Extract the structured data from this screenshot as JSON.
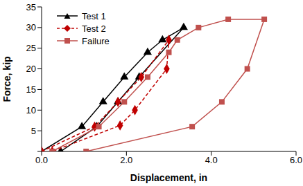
{
  "chart_data": {
    "type": "line",
    "x_label": "Displacement, in",
    "y_label": "Force, kip",
    "xlim": [
      0,
      6
    ],
    "xticks": [
      {
        "value": 0,
        "label": "0.0"
      },
      {
        "value": 2,
        "label": "2.0"
      },
      {
        "value": 4,
        "label": "4.0"
      },
      {
        "value": 6,
        "label": "6.0"
      }
    ],
    "ylim": [
      0,
      35
    ],
    "yticks": [
      0,
      5,
      10,
      15,
      20,
      25,
      30,
      35
    ],
    "grid": false,
    "legend": "upper left",
    "series": [
      {
        "name": "Test 1",
        "color": "#000000",
        "marker": "triangle",
        "line_style": "solid",
        "x": [
          0,
          0.95,
          1.45,
          1.95,
          2.5,
          2.85,
          3.35,
          2.3,
          1.8,
          1.3,
          0.45
        ],
        "values": [
          0,
          6,
          12,
          18,
          24,
          27,
          30,
          18,
          12,
          6,
          0
        ]
      },
      {
        "name": "Test 2",
        "color": "#c00000",
        "marker": "diamond",
        "line_style": "dashed",
        "x": [
          0,
          1.25,
          1.8,
          2.35,
          3.0,
          2.95,
          2.2,
          1.85,
          0.25
        ],
        "values": [
          0,
          6,
          12,
          18,
          27,
          20,
          10,
          6.3,
          0
        ]
      },
      {
        "name": "Failure",
        "color": "#c0504d",
        "marker": "square",
        "line_style": "solid",
        "x": [
          0.25,
          1.35,
          1.95,
          2.5,
          3.0,
          3.2,
          3.7,
          4.4,
          5.25,
          4.85,
          4.25,
          3.55,
          1.05
        ],
        "values": [
          0,
          6,
          12,
          18,
          24,
          27,
          30,
          32,
          32,
          20,
          12,
          6,
          0
        ]
      }
    ]
  }
}
